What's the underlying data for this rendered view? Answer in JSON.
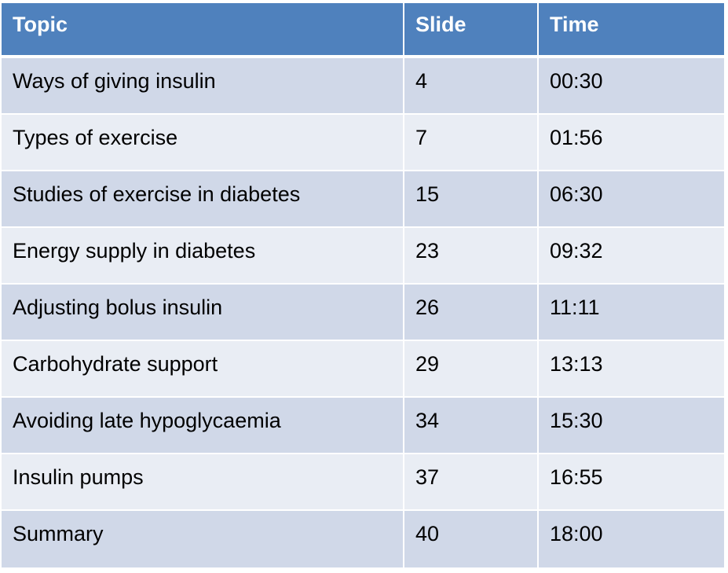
{
  "header": {
    "topic": "Topic",
    "slide": "Slide",
    "time": "Time"
  },
  "rows": [
    {
      "topic": "Ways of giving insulin",
      "slide": "4",
      "time": "00:30"
    },
    {
      "topic": "Types of exercise",
      "slide": "7",
      "time": "01:56"
    },
    {
      "topic": "Studies of exercise in diabetes",
      "slide": "15",
      "time": "06:30"
    },
    {
      "topic": "Energy supply in diabetes",
      "slide": "23",
      "time": "09:32"
    },
    {
      "topic": "Adjusting bolus insulin",
      "slide": "26",
      "time": "11:11"
    },
    {
      "topic": "Carbohydrate support",
      "slide": "29",
      "time": "13:13"
    },
    {
      "topic": "Avoiding late hypoglycaemia",
      "slide": "34",
      "time": "15:30"
    },
    {
      "topic": "Insulin pumps",
      "slide": "37",
      "time": "16:55"
    },
    {
      "topic": "Summary",
      "slide": "40",
      "time": "18:00"
    }
  ],
  "colors": {
    "header_bg": "#4f81bd",
    "row_odd_bg": "#d0d8e8",
    "row_even_bg": "#e9edf4"
  }
}
